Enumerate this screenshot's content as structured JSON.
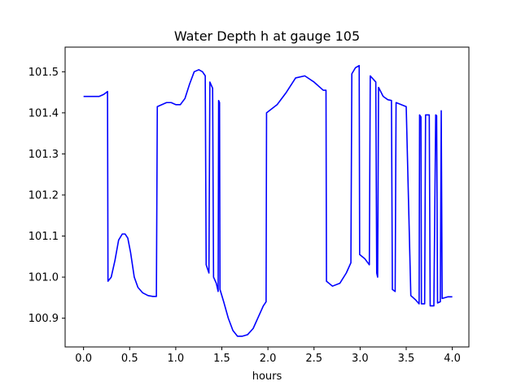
{
  "chart_data": {
    "type": "line",
    "title": "Water Depth h at gauge 105",
    "xlabel": "hours",
    "ylabel": "",
    "xlim": [
      -0.2,
      4.18
    ],
    "ylim": [
      100.83,
      101.56
    ],
    "xticks": [
      "0.0",
      "0.5",
      "1.0",
      "1.5",
      "2.0",
      "2.5",
      "3.0",
      "3.5",
      "4.0"
    ],
    "yticks": [
      "100.9",
      "101.0",
      "101.1",
      "101.2",
      "101.3",
      "101.4",
      "101.5"
    ],
    "grid": false,
    "series": [
      {
        "color": "#0000ff",
        "x": [
          0.0,
          0.1,
          0.17,
          0.22,
          0.26,
          0.265,
          0.3,
          0.34,
          0.38,
          0.42,
          0.45,
          0.48,
          0.51,
          0.55,
          0.59,
          0.64,
          0.7,
          0.75,
          0.79,
          0.8,
          0.85,
          0.9,
          0.95,
          1.0,
          1.05,
          1.1,
          1.15,
          1.2,
          1.25,
          1.29,
          1.32,
          1.33,
          1.36,
          1.37,
          1.4,
          1.41,
          1.44,
          1.46,
          1.465,
          1.475,
          1.48,
          1.52,
          1.57,
          1.62,
          1.67,
          1.72,
          1.78,
          1.84,
          1.9,
          1.95,
          1.98,
          1.985,
          2.1,
          2.2,
          2.3,
          2.4,
          2.5,
          2.6,
          2.63,
          2.635,
          2.7,
          2.78,
          2.85,
          2.9,
          2.91,
          2.95,
          2.99,
          2.995,
          3.05,
          3.1,
          3.11,
          3.17,
          3.18,
          3.19,
          3.2,
          3.25,
          3.3,
          3.34,
          3.35,
          3.38,
          3.39,
          3.5,
          3.55,
          3.6,
          3.64,
          3.645,
          3.66,
          3.665,
          3.7,
          3.71,
          3.75,
          3.76,
          3.8,
          3.82,
          3.83,
          3.84,
          3.87,
          3.88,
          3.89,
          3.95,
          4.0
        ],
        "y": [
          101.44,
          101.44,
          101.44,
          101.445,
          101.452,
          100.99,
          101.0,
          101.04,
          101.09,
          101.105,
          101.105,
          101.095,
          101.06,
          101.0,
          100.975,
          100.962,
          100.955,
          100.953,
          100.953,
          101.415,
          101.42,
          101.425,
          101.425,
          101.42,
          101.42,
          101.435,
          101.47,
          101.5,
          101.505,
          101.5,
          101.49,
          101.03,
          101.01,
          101.475,
          101.46,
          101.0,
          100.985,
          100.965,
          101.43,
          101.425,
          100.97,
          100.94,
          100.9,
          100.87,
          100.856,
          100.856,
          100.86,
          100.875,
          100.905,
          100.93,
          100.94,
          101.4,
          101.42,
          101.45,
          101.485,
          101.49,
          101.475,
          101.455,
          101.455,
          100.99,
          100.978,
          100.985,
          101.01,
          101.035,
          101.495,
          101.51,
          101.515,
          101.055,
          101.045,
          101.03,
          101.49,
          101.475,
          101.01,
          101.0,
          101.462,
          101.44,
          101.432,
          101.43,
          100.97,
          100.965,
          101.425,
          101.415,
          100.955,
          100.945,
          100.935,
          101.395,
          101.39,
          100.935,
          100.935,
          101.395,
          101.395,
          100.93,
          100.93,
          101.395,
          101.393,
          100.937,
          100.94,
          101.405,
          100.948,
          100.952,
          100.952
        ]
      }
    ]
  }
}
